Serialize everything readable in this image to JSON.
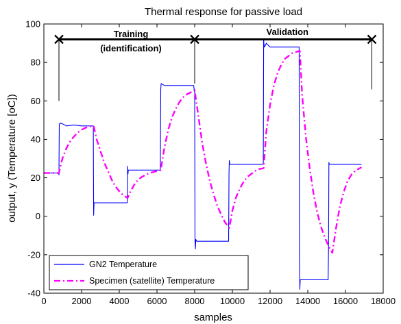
{
  "chart_data": {
    "type": "line",
    "title": "Thermal response for passive load",
    "xlabel": "samples",
    "ylabel": "output, y (Temperature [oC])",
    "xlim": [
      0,
      18000
    ],
    "ylim": [
      -40,
      100
    ],
    "xticks": [
      0,
      2000,
      4000,
      6000,
      8000,
      10000,
      12000,
      14000,
      16000,
      18000
    ],
    "yticks": [
      -40,
      -20,
      0,
      20,
      40,
      60,
      80,
      100
    ],
    "grid": false,
    "legend_position": "bottom-left",
    "series": [
      {
        "name": "GN2 Temperature",
        "color": "#0000ff",
        "style": "solid",
        "x": [
          0,
          780,
          800,
          820,
          900,
          1200,
          1600,
          2000,
          2400,
          2620,
          2640,
          2660,
          2700,
          3000,
          3500,
          4000,
          4420,
          4440,
          4460,
          4480,
          4700,
          5000,
          5500,
          6000,
          6180,
          6200,
          6220,
          6400,
          6800,
          7200,
          7600,
          7950,
          7980,
          8000,
          8020,
          8040,
          8060,
          8100,
          8200,
          8500,
          9000,
          9500,
          9800,
          9820,
          9840,
          9860,
          10000,
          10500,
          11000,
          11500,
          11640,
          11660,
          11680,
          11700,
          11800,
          12000,
          12400,
          12800,
          13200,
          13540,
          13560,
          13580,
          13600,
          13800,
          14200,
          14600,
          15000,
          15080,
          15100,
          15120,
          15140,
          15300,
          15600,
          16000,
          16500,
          16850
        ],
        "values": [
          22.5,
          22.5,
          21.5,
          48,
          48.5,
          47,
          47.5,
          47,
          47,
          47,
          0.5,
          7,
          7,
          7,
          7,
          7,
          7,
          26,
          22,
          24,
          24,
          24,
          24,
          24,
          24,
          66,
          69,
          68,
          68,
          68,
          68,
          68,
          65,
          66,
          -13,
          -17,
          -12,
          -13,
          -13,
          -13,
          -13,
          -13,
          -13,
          23,
          29,
          27,
          27,
          27,
          27,
          27,
          27,
          92,
          89,
          88,
          90,
          88,
          88,
          88,
          88,
          88,
          -20,
          -38,
          -33,
          -33,
          -33,
          -33,
          -33,
          -33,
          -15,
          28,
          27,
          27,
          27,
          27,
          27,
          27
        ]
      },
      {
        "name": "Specimen (satellite) Temperature",
        "color": "#ff00ff",
        "style": "dash-dot",
        "x": [
          0,
          800,
          900,
          1000,
          1200,
          1400,
          1600,
          1800,
          2000,
          2200,
          2400,
          2640,
          2800,
          3000,
          3200,
          3400,
          3600,
          3800,
          4000,
          4200,
          4440,
          4600,
          4800,
          5000,
          5200,
          5400,
          5600,
          5800,
          6000,
          6200,
          6400,
          6600,
          6800,
          7000,
          7200,
          7400,
          7600,
          7800,
          8000,
          8200,
          8400,
          8600,
          8800,
          9000,
          9200,
          9400,
          9600,
          9840,
          10000,
          10200,
          10400,
          10600,
          10800,
          11000,
          11200,
          11400,
          11660,
          11800,
          12000,
          12200,
          12400,
          12600,
          12800,
          13000,
          13200,
          13400,
          13580,
          13700,
          13900,
          14100,
          14300,
          14500,
          14700,
          14900,
          15100,
          15300,
          15500,
          15700,
          15900,
          16100,
          16300,
          16500,
          16850
        ],
        "values": [
          22.5,
          22.5,
          27,
          30.5,
          35.5,
          39,
          41.5,
          43.5,
          45,
          46,
          46.5,
          47,
          40,
          34,
          28,
          23.5,
          19,
          15.5,
          13,
          11,
          9.5,
          13,
          16.5,
          19,
          20.5,
          21.5,
          22.5,
          23,
          23.5,
          24,
          36,
          45,
          51.5,
          56,
          59.5,
          62,
          63.5,
          64.5,
          65.5,
          52,
          38,
          27.5,
          18.5,
          11.5,
          5.5,
          1,
          -3,
          -6,
          3,
          10,
          14.5,
          18,
          20.5,
          22,
          23.5,
          24.5,
          25,
          44,
          58,
          68,
          74.5,
          79,
          82,
          83.5,
          85,
          85.5,
          86,
          63,
          41,
          25,
          12,
          2,
          -5.5,
          -11,
          -15.5,
          -19,
          -6,
          5,
          12.5,
          18,
          21.5,
          23.5,
          25.5
        ]
      }
    ],
    "annotations": {
      "training_label_line1": "Training",
      "training_label_line2": "(identification)",
      "validation_label": "Validation",
      "markers_x": [
        800,
        8000,
        17400
      ],
      "markers_y": 92,
      "marker_symbol": "x"
    }
  }
}
